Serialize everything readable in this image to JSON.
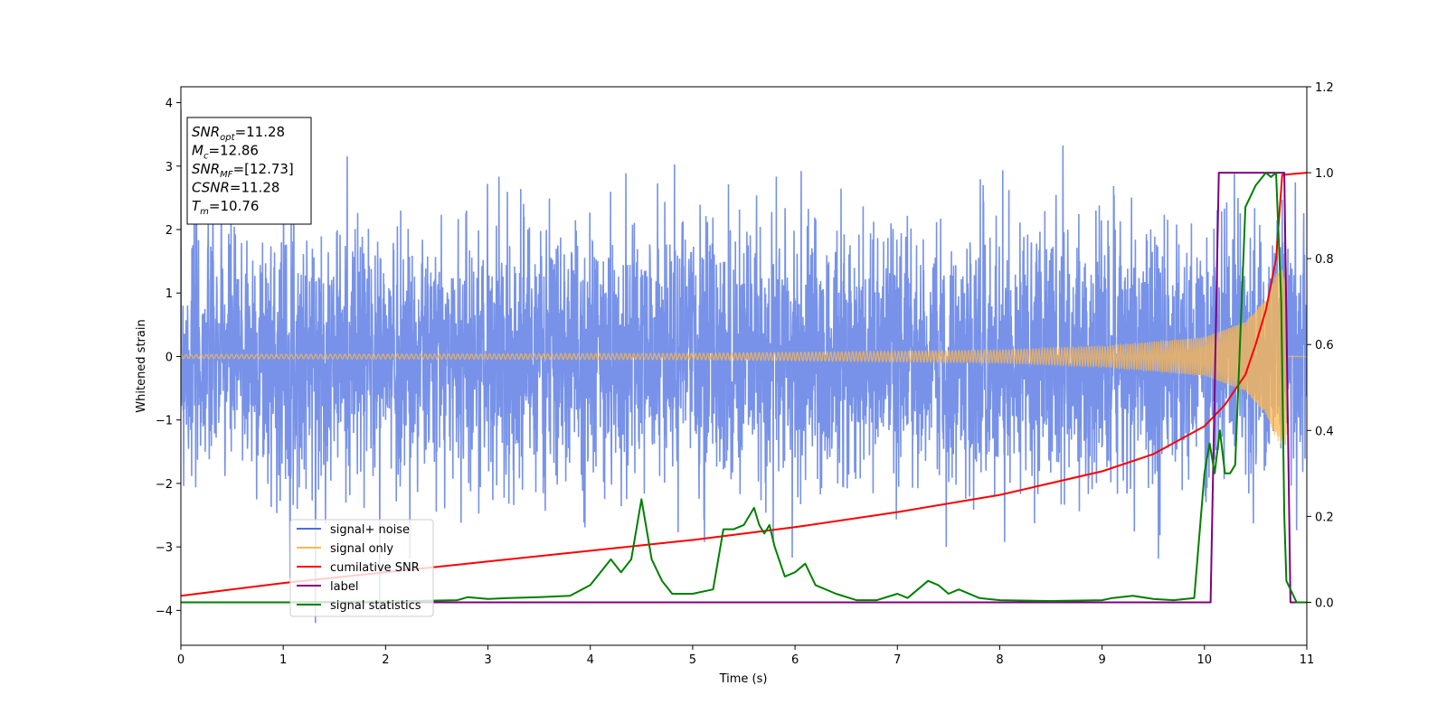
{
  "chart_data": {
    "type": "line",
    "xlabel": "Time (s)",
    "ylabel": "Whitened strain",
    "xlim": [
      0,
      11
    ],
    "ylim": [
      -4.55,
      4.25
    ],
    "y2lim": [
      -0.1,
      1.2
    ],
    "xticks": [
      0,
      1,
      2,
      3,
      4,
      5,
      6,
      7,
      8,
      9,
      10,
      11
    ],
    "yticks": [
      -4,
      -3,
      -2,
      -1,
      0,
      1,
      2,
      3,
      4
    ],
    "y2ticks": [
      0.0,
      0.2,
      0.4,
      0.6,
      0.8,
      1.0,
      1.2
    ],
    "info_box": [
      {
        "base": "SNR",
        "sub": "opt",
        "value": "=11.28"
      },
      {
        "base": "M",
        "sub": "c",
        "value": "=12.86"
      },
      {
        "base": "SNR",
        "sub": "MF",
        "value": "=[12.73]"
      },
      {
        "base": "CSNR",
        "sub": "",
        "value": "=11.28"
      },
      {
        "base": "T",
        "sub": "m",
        "value": "=10.76"
      }
    ],
    "legend": {
      "location": "lower-left",
      "entries": [
        {
          "label": "signal+ noise",
          "color": "#4a6ee0"
        },
        {
          "label": "signal only",
          "color": "#ffb84d"
        },
        {
          "label": "cumilative SNR",
          "color": "#ff0000"
        },
        {
          "label": "label",
          "color": "#800080"
        },
        {
          "label": "signal statistics",
          "color": "#008000"
        }
      ]
    },
    "series": [
      {
        "name": "signal+ noise",
        "axis": "left",
        "color": "#4a6ee0",
        "kind": "noise",
        "sigma": 1.0,
        "duration": 11,
        "seed": 7
      },
      {
        "name": "signal only",
        "axis": "left",
        "color": "#ffb84d",
        "kind": "chirp",
        "t_merge": 10.8,
        "amplitude_envelope": [
          [
            0,
            0.03
          ],
          [
            5,
            0.05
          ],
          [
            8,
            0.1
          ],
          [
            9,
            0.16
          ],
          [
            10,
            0.3
          ],
          [
            10.4,
            0.55
          ],
          [
            10.6,
            0.9
          ],
          [
            10.7,
            1.3
          ],
          [
            10.76,
            1.4
          ]
        ]
      },
      {
        "name": "cumilative SNR",
        "axis": "right",
        "color": "#ff0000",
        "x": [
          0,
          1,
          2,
          3,
          4,
          5,
          6,
          7,
          8,
          9,
          9.5,
          10,
          10.2,
          10.4,
          10.5,
          10.6,
          10.7,
          10.76,
          11
        ],
        "y": [
          0.015,
          0.045,
          0.07,
          0.095,
          0.12,
          0.145,
          0.175,
          0.21,
          0.25,
          0.305,
          0.345,
          0.41,
          0.46,
          0.53,
          0.6,
          0.68,
          0.8,
          0.995,
          1.0
        ]
      },
      {
        "name": "label",
        "axis": "right",
        "color": "#800080",
        "x": [
          0,
          10.06,
          10.14,
          10.78,
          10.84,
          11
        ],
        "y": [
          0,
          0,
          1,
          1,
          0,
          0
        ]
      },
      {
        "name": "signal statistics",
        "axis": "right",
        "color": "#008000",
        "x": [
          0,
          1,
          2,
          2.7,
          2.8,
          3,
          3.2,
          3.5,
          3.8,
          4,
          4.1,
          4.2,
          4.3,
          4.4,
          4.5,
          4.6,
          4.7,
          4.8,
          5,
          5.2,
          5.3,
          5.4,
          5.5,
          5.6,
          5.65,
          5.7,
          5.75,
          5.8,
          5.9,
          6,
          6.1,
          6.2,
          6.4,
          6.6,
          6.8,
          7,
          7.1,
          7.2,
          7.3,
          7.4,
          7.5,
          7.6,
          7.8,
          8,
          8.5,
          9,
          9.1,
          9.3,
          9.5,
          9.7,
          9.9,
          10,
          10.05,
          10.1,
          10.15,
          10.2,
          10.25,
          10.3,
          10.4,
          10.5,
          10.6,
          10.65,
          10.7,
          10.75,
          10.78,
          10.8,
          10.9,
          11
        ],
        "y": [
          0,
          0,
          0.002,
          0.005,
          0.012,
          0.008,
          0.01,
          0.012,
          0.015,
          0.04,
          0.07,
          0.1,
          0.07,
          0.1,
          0.24,
          0.1,
          0.05,
          0.02,
          0.02,
          0.03,
          0.17,
          0.17,
          0.18,
          0.22,
          0.18,
          0.16,
          0.18,
          0.13,
          0.06,
          0.07,
          0.09,
          0.04,
          0.02,
          0.005,
          0.005,
          0.02,
          0.01,
          0.03,
          0.05,
          0.04,
          0.02,
          0.03,
          0.01,
          0.005,
          0.003,
          0.005,
          0.01,
          0.015,
          0.008,
          0.005,
          0.01,
          0.3,
          0.37,
          0.3,
          0.4,
          0.3,
          0.3,
          0.32,
          0.92,
          0.97,
          1.0,
          0.99,
          1.0,
          0.7,
          0.2,
          0.05,
          0.0,
          0.0
        ]
      }
    ]
  }
}
